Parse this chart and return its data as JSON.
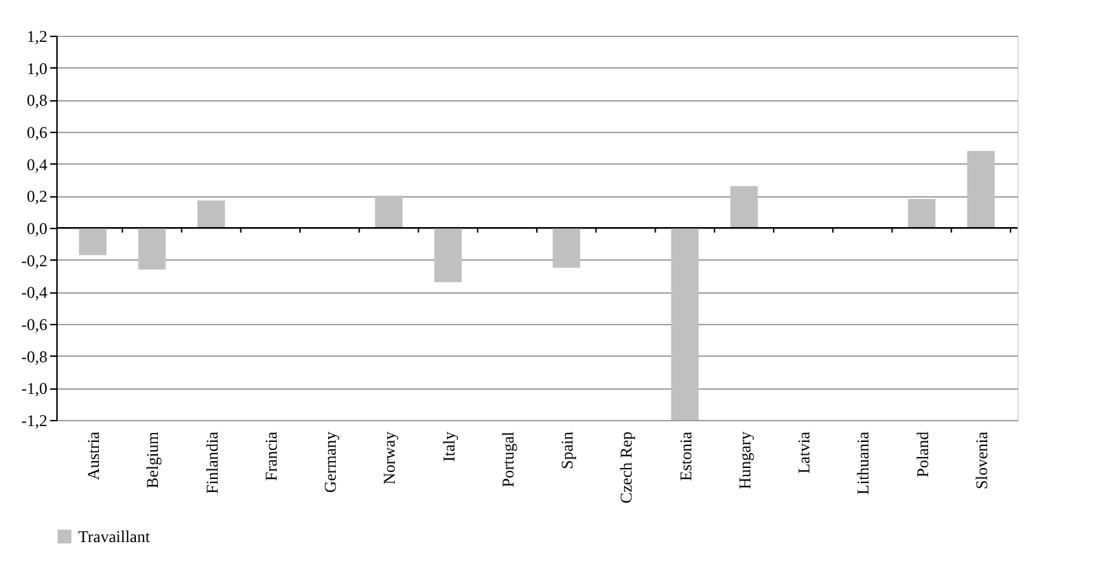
{
  "chart_data": {
    "type": "bar",
    "categories": [
      "Austria",
      "Belgium",
      "Finlandia",
      "Francia",
      "Germany",
      "Norway",
      "Italy",
      "Portugal",
      "Spain",
      "Czech Rep",
      "Estonia",
      "Hungary",
      "Latvia",
      "Lithuania",
      "Poland",
      "Slovenia"
    ],
    "series": [
      {
        "name": "Travaillant",
        "color": "#c0c0c0",
        "values": [
          -0.17,
          -0.26,
          0.17,
          null,
          null,
          0.2,
          -0.34,
          null,
          -0.25,
          null,
          -1.2,
          0.26,
          null,
          null,
          0.18,
          0.48
        ]
      }
    ],
    "ylim": [
      -1.2,
      1.2
    ],
    "yticks": [
      {
        "value": -1.2,
        "label": "-1,2"
      },
      {
        "value": -1.0,
        "label": "-1,0"
      },
      {
        "value": -0.8,
        "label": "-0,8"
      },
      {
        "value": -0.6,
        "label": "-0,6"
      },
      {
        "value": -0.4,
        "label": "-0,4"
      },
      {
        "value": -0.2,
        "label": "-0,2"
      },
      {
        "value": 0.0,
        "label": "0,0"
      },
      {
        "value": 0.2,
        "label": "0,2"
      },
      {
        "value": 0.4,
        "label": "0,4"
      },
      {
        "value": 0.6,
        "label": "0,6"
      },
      {
        "value": 0.8,
        "label": "0,8"
      },
      {
        "value": 1.0,
        "label": "1,0"
      },
      {
        "value": 1.2,
        "label": "1,2"
      }
    ],
    "grid": "y",
    "legend": "bottom"
  }
}
